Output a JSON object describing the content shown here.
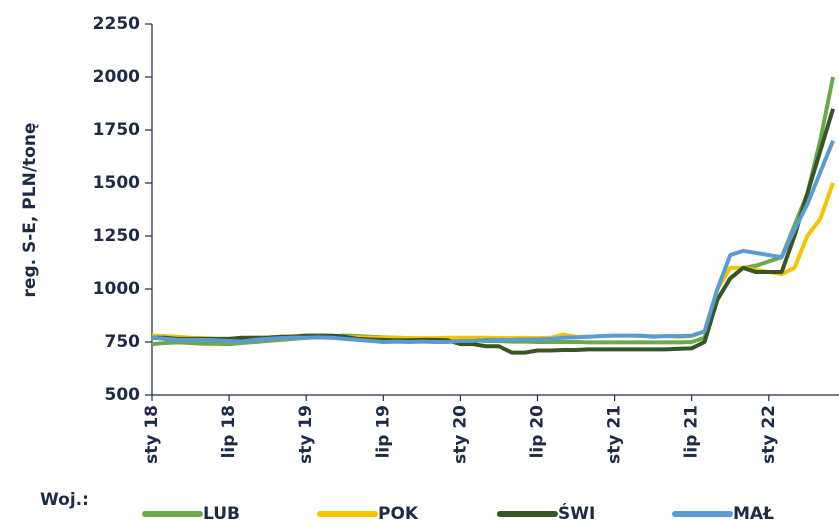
{
  "chart_data": {
    "type": "line",
    "ylabel": "reg. S-E, PLN/tonę",
    "legend_title": "Woj.:",
    "legend": "bottom",
    "categories": [
      "sty 18",
      null,
      null,
      null,
      null,
      null,
      "lip 18",
      null,
      null,
      null,
      null,
      null,
      "sty 19",
      null,
      null,
      null,
      null,
      null,
      "lip 19",
      null,
      null,
      null,
      null,
      null,
      "sty 20",
      null,
      null,
      null,
      null,
      null,
      "lip 20",
      null,
      null,
      null,
      null,
      null,
      "sty 21",
      null,
      null,
      null,
      null,
      null,
      "lip 21",
      null,
      null,
      null,
      null,
      null,
      "sty 22",
      null,
      null,
      null,
      null,
      null
    ],
    "ylim": [
      500,
      2250
    ],
    "yticks": [
      500,
      750,
      1000,
      1250,
      1500,
      1750,
      2000,
      2250
    ],
    "series": [
      {
        "name": "LUB",
        "color": "#6aaa4a",
        "values": [
          740,
          745,
          748,
          745,
          742,
          742,
          740,
          745,
          750,
          755,
          760,
          765,
          770,
          775,
          778,
          780,
          778,
          775,
          772,
          770,
          768,
          765,
          762,
          760,
          760,
          758,
          755,
          755,
          752,
          752,
          750,
          750,
          750,
          750,
          748,
          748,
          748,
          748,
          748,
          748,
          748,
          748,
          750,
          770,
          950,
          1050,
          1100,
          1110,
          1130,
          1150,
          1300,
          1450,
          1700,
          2000
        ]
      },
      {
        "name": "POK",
        "color": "#f5c400",
        "values": [
          780,
          778,
          775,
          770,
          768,
          765,
          765,
          768,
          770,
          772,
          775,
          778,
          780,
          780,
          778,
          775,
          772,
          770,
          770,
          770,
          768,
          768,
          768,
          770,
          770,
          770,
          770,
          768,
          768,
          770,
          768,
          770,
          785,
          775,
          775,
          778,
          780,
          780,
          778,
          778,
          778,
          775,
          778,
          800,
          1000,
          1100,
          1100,
          1090,
          1080,
          1070,
          1100,
          1250,
          1330,
          1500
        ]
      },
      {
        "name": "ŚWI",
        "color": "#375623",
        "values": [
          770,
          770,
          765,
          765,
          765,
          765,
          765,
          770,
          770,
          770,
          775,
          775,
          780,
          780,
          780,
          775,
          765,
          762,
          760,
          758,
          758,
          760,
          760,
          758,
          740,
          740,
          730,
          730,
          700,
          700,
          710,
          710,
          712,
          712,
          715,
          715,
          715,
          715,
          715,
          715,
          715,
          718,
          720,
          750,
          950,
          1050,
          1100,
          1080,
          1080,
          1080,
          1250,
          1450,
          1650,
          1850
        ]
      },
      {
        "name": "MAŁ",
        "color": "#5b9bd5",
        "values": [
          770,
          765,
          760,
          760,
          760,
          758,
          755,
          752,
          760,
          765,
          768,
          770,
          770,
          772,
          770,
          765,
          760,
          755,
          750,
          752,
          750,
          752,
          750,
          750,
          755,
          755,
          760,
          760,
          760,
          762,
          762,
          765,
          770,
          772,
          775,
          778,
          780,
          780,
          780,
          775,
          778,
          778,
          780,
          800,
          1000,
          1160,
          1180,
          1170,
          1160,
          1150,
          1280,
          1400,
          1550,
          1700
        ]
      }
    ]
  }
}
